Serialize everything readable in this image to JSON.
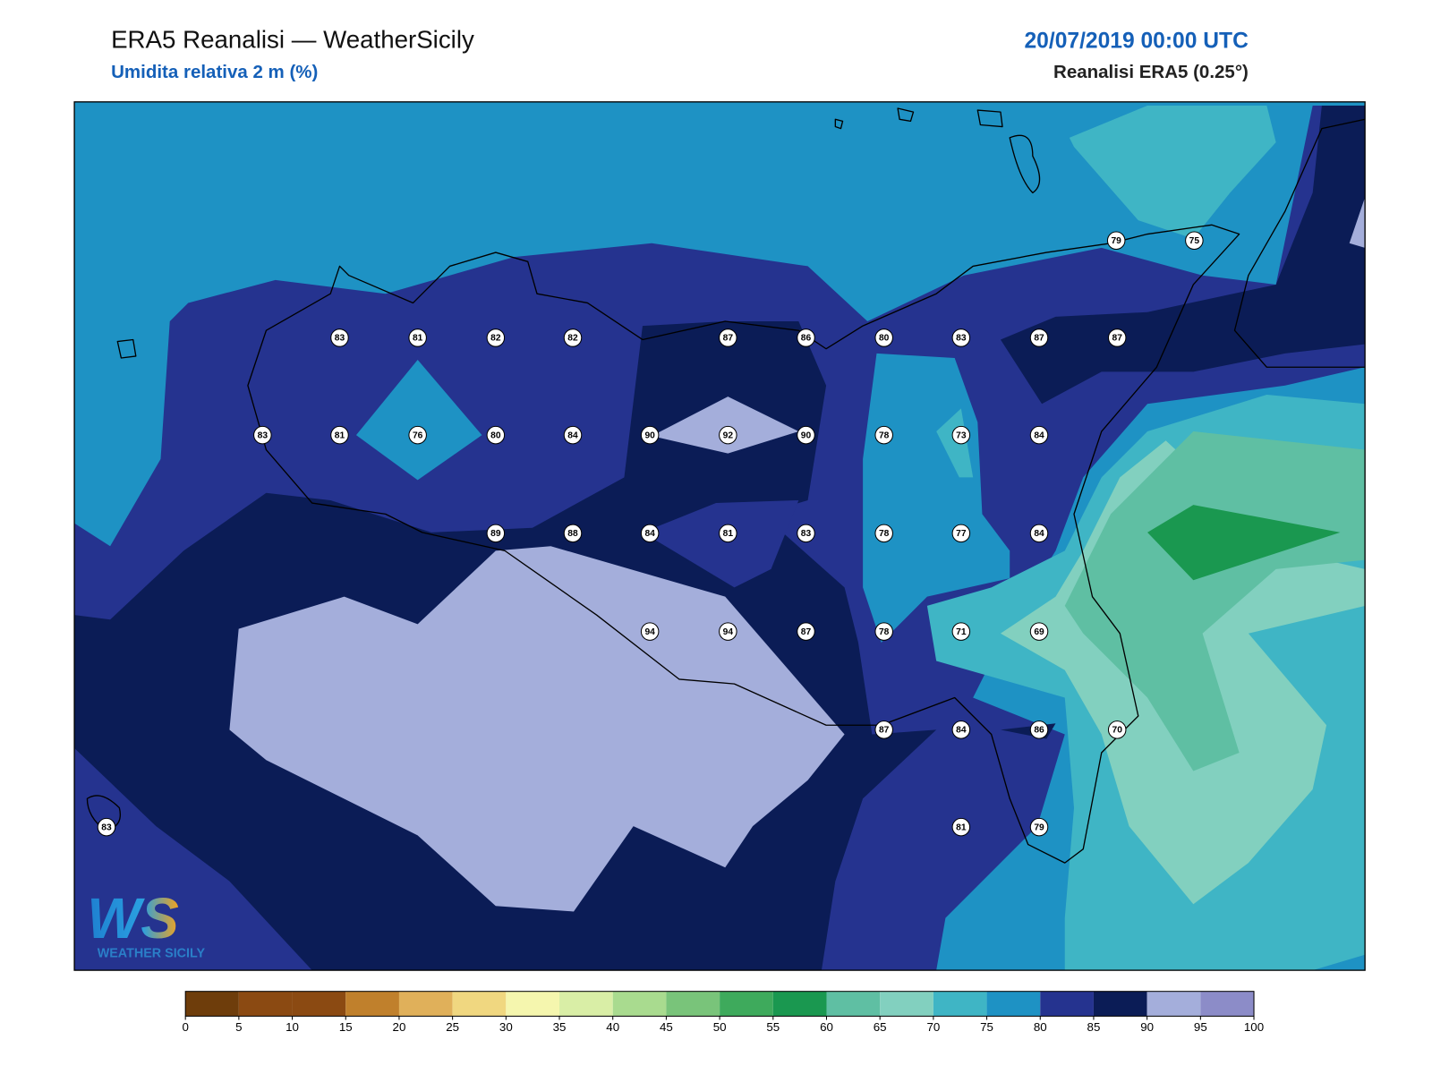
{
  "header": {
    "title": "ERA5 Reanalisi — WeatherSicily",
    "subtitle": "Umidita relativa 2 m (%)",
    "date": "20/07/2019 00:00 UTC",
    "source": "Reanalisi ERA5 (0.25°)"
  },
  "stations": [
    83,
    81,
    82,
    82,
    87,
    86,
    80,
    83,
    87,
    87,
    83,
    81,
    76,
    80,
    84,
    90,
    92,
    90,
    78,
    73,
    84,
    89,
    88,
    84,
    81,
    83,
    78,
    77,
    84,
    94,
    94,
    87,
    78,
    71,
    69,
    87,
    84,
    86,
    70,
    83,
    81,
    79,
    79,
    75
  ],
  "colorbar": {
    "ticks": [
      0,
      5,
      10,
      15,
      20,
      25,
      30,
      35,
      40,
      45,
      50,
      55,
      60,
      65,
      70,
      75,
      80,
      85,
      90,
      95,
      100
    ],
    "colors": [
      "#6e3d0b",
      "#8b4a12",
      "#8b4a12",
      "#c0802c",
      "#e0b05a",
      "#f0d780",
      "#f5f6ae",
      "#d9eea6",
      "#a9db8f",
      "#79c47a",
      "#3eaa5c",
      "#1a9850",
      "#5fbfa3",
      "#82d0bf",
      "#3fb5c5",
      "#1e92c4",
      "#25338f",
      "#0b1c56",
      "#a4aedb",
      "#8c8cc8"
    ]
  },
  "logo": {
    "mark": "WS",
    "text": "WEATHER SICILY"
  }
}
